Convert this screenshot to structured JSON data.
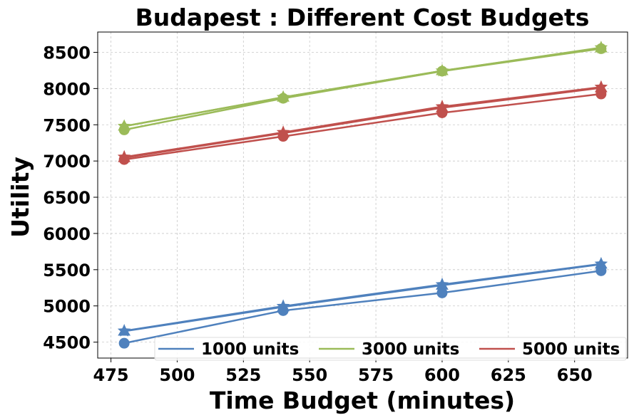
{
  "chart_data": {
    "type": "line",
    "title": "Budapest : Different Cost Budgets",
    "xlabel": "Time Budget (minutes)",
    "ylabel": "Utility",
    "xlim": [
      470,
      670
    ],
    "ylim": [
      4280,
      8780
    ],
    "xticks": [
      475,
      500,
      525,
      550,
      575,
      600,
      625,
      650
    ],
    "yticks": [
      4500,
      5000,
      5500,
      6000,
      6500,
      7000,
      7500,
      8000,
      8500
    ],
    "grid": true,
    "legend_position": "lower-right",
    "x": [
      480,
      540,
      600,
      660
    ],
    "legend": [
      {
        "label": "1000 units",
        "color": "#4f81bd"
      },
      {
        "label": "3000 units",
        "color": "#9bbb59"
      },
      {
        "label": "5000 units",
        "color": "#c0504d"
      }
    ],
    "series": [
      {
        "group": "1000 units",
        "color": "#4f81bd",
        "marker": "circle",
        "values": [
          4485,
          4935,
          5180,
          5485
        ]
      },
      {
        "group": "1000 units",
        "color": "#4f81bd",
        "marker": "triangle",
        "values": [
          4650,
          4985,
          5285,
          5575
        ]
      },
      {
        "group": "1000 units",
        "color": "#4f81bd",
        "marker": "star",
        "values": [
          4655,
          4995,
          5295,
          5580
        ]
      },
      {
        "group": "3000 units",
        "color": "#9bbb59",
        "marker": "circle",
        "values": [
          7430,
          7865,
          8240,
          8550
        ]
      },
      {
        "group": "3000 units",
        "color": "#9bbb59",
        "marker": "triangle",
        "values": [
          7480,
          7880,
          8245,
          8560
        ]
      },
      {
        "group": "3000 units",
        "color": "#9bbb59",
        "marker": "star",
        "values": [
          7480,
          7880,
          8245,
          8565
        ]
      },
      {
        "group": "5000 units",
        "color": "#c0504d",
        "marker": "circle",
        "values": [
          7020,
          7340,
          7665,
          7925
        ]
      },
      {
        "group": "5000 units",
        "color": "#c0504d",
        "marker": "triangle",
        "values": [
          7045,
          7385,
          7735,
          8010
        ]
      },
      {
        "group": "5000 units",
        "color": "#c0504d",
        "marker": "star",
        "values": [
          7055,
          7395,
          7750,
          8020
        ]
      }
    ]
  }
}
